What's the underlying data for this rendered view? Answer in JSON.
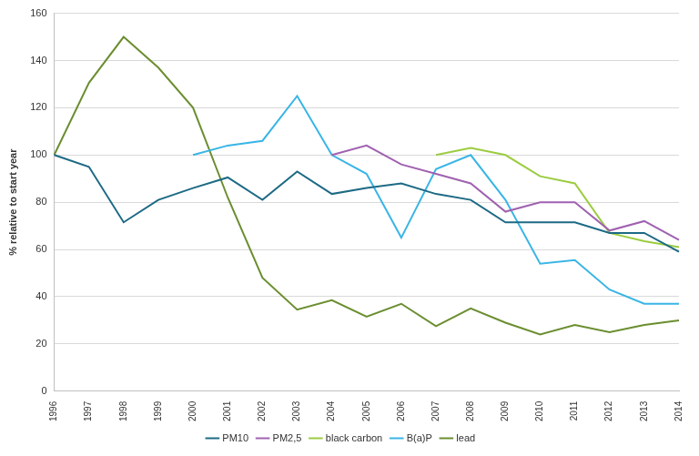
{
  "chart_data": {
    "type": "line",
    "y_label": "% relative to start year",
    "categories": [
      "1996",
      "1997",
      "1998",
      "1999",
      "2000",
      "2001",
      "2002",
      "2003",
      "2004",
      "2005",
      "2006",
      "2007",
      "2008",
      "2009",
      "2010",
      "2011",
      "2012",
      "2013",
      "2014"
    ],
    "series": [
      {
        "name": "PM10",
        "color": "#1d6a85",
        "values": [
          100,
          95,
          71.5,
          81,
          86,
          90.5,
          81,
          93,
          83.5,
          86,
          88,
          83.5,
          81,
          71.5,
          71.5,
          71.5,
          67,
          67,
          59
        ]
      },
      {
        "name": "PM2,5",
        "color": "#a062b0",
        "values": [
          null,
          null,
          null,
          null,
          null,
          null,
          null,
          null,
          100,
          104,
          96,
          92,
          88,
          76,
          80,
          80,
          68,
          72,
          64
        ]
      },
      {
        "name": "black carbon",
        "color": "#9ccc40",
        "values": [
          null,
          null,
          null,
          null,
          null,
          null,
          null,
          null,
          null,
          null,
          null,
          100,
          103,
          100,
          91,
          88,
          67,
          63.5,
          61
        ]
      },
      {
        "name": "B(a)P",
        "color": "#3ab5e6",
        "values": [
          null,
          null,
          null,
          null,
          100,
          104,
          106,
          125,
          100,
          92,
          65,
          94,
          100,
          81,
          54,
          55.5,
          43,
          37,
          37
        ]
      },
      {
        "name": "lead",
        "color": "#6b8e30",
        "values": [
          100,
          130.5,
          150,
          137,
          120,
          82,
          48,
          34.5,
          38.5,
          31.5,
          37,
          27.5,
          35,
          29,
          24,
          28,
          25,
          28,
          30
        ]
      }
    ],
    "ylim": [
      0,
      160
    ],
    "yticks": [
      0,
      20,
      40,
      60,
      80,
      100,
      120,
      140,
      160
    ],
    "grid": true,
    "legend": "bottom"
  }
}
